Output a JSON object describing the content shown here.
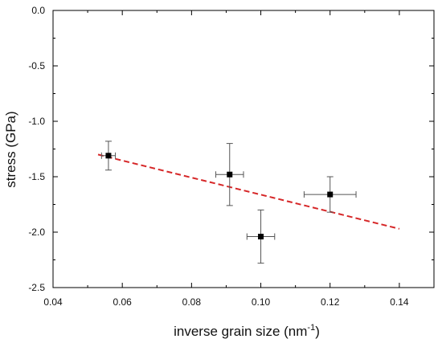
{
  "chart_data": {
    "type": "scatter",
    "xlabel": "inverse grain size (nm",
    "xlabel_superscript": "-1",
    "xlabel_suffix": ")",
    "ylabel": "stress (GPa)",
    "xlim": [
      0.04,
      0.15
    ],
    "ylim": [
      -2.5,
      0.0
    ],
    "x_ticks": [
      0.04,
      0.06,
      0.08,
      0.1,
      0.12,
      0.14
    ],
    "x_tick_labels": [
      "0.04",
      "0.06",
      "0.08",
      "0.10",
      "0.12",
      "0.14"
    ],
    "y_ticks": [
      0.0,
      -0.5,
      -1.0,
      -1.5,
      -2.0,
      -2.5
    ],
    "y_tick_labels": [
      "0.0",
      "-0.5",
      "-1.0",
      "-1.5",
      "-2.0",
      "-2.5"
    ],
    "grid": false,
    "legend": false,
    "points": [
      {
        "x": 0.056,
        "y": -1.31,
        "x_err": 0.002,
        "y_err": 0.13
      },
      {
        "x": 0.091,
        "y": -1.48,
        "x_err": 0.004,
        "y_err": 0.28
      },
      {
        "x": 0.1,
        "y": -2.04,
        "x_err": 0.004,
        "y_err": 0.24
      },
      {
        "x": 0.12,
        "y": -1.66,
        "x_err": 0.0075,
        "y_err": 0.16
      }
    ],
    "fit_line": {
      "x": [
        0.053,
        0.14
      ],
      "y": [
        -1.3,
        -1.97
      ],
      "style": "dashed",
      "color": "#d62728"
    },
    "marker_color": "#000000"
  }
}
